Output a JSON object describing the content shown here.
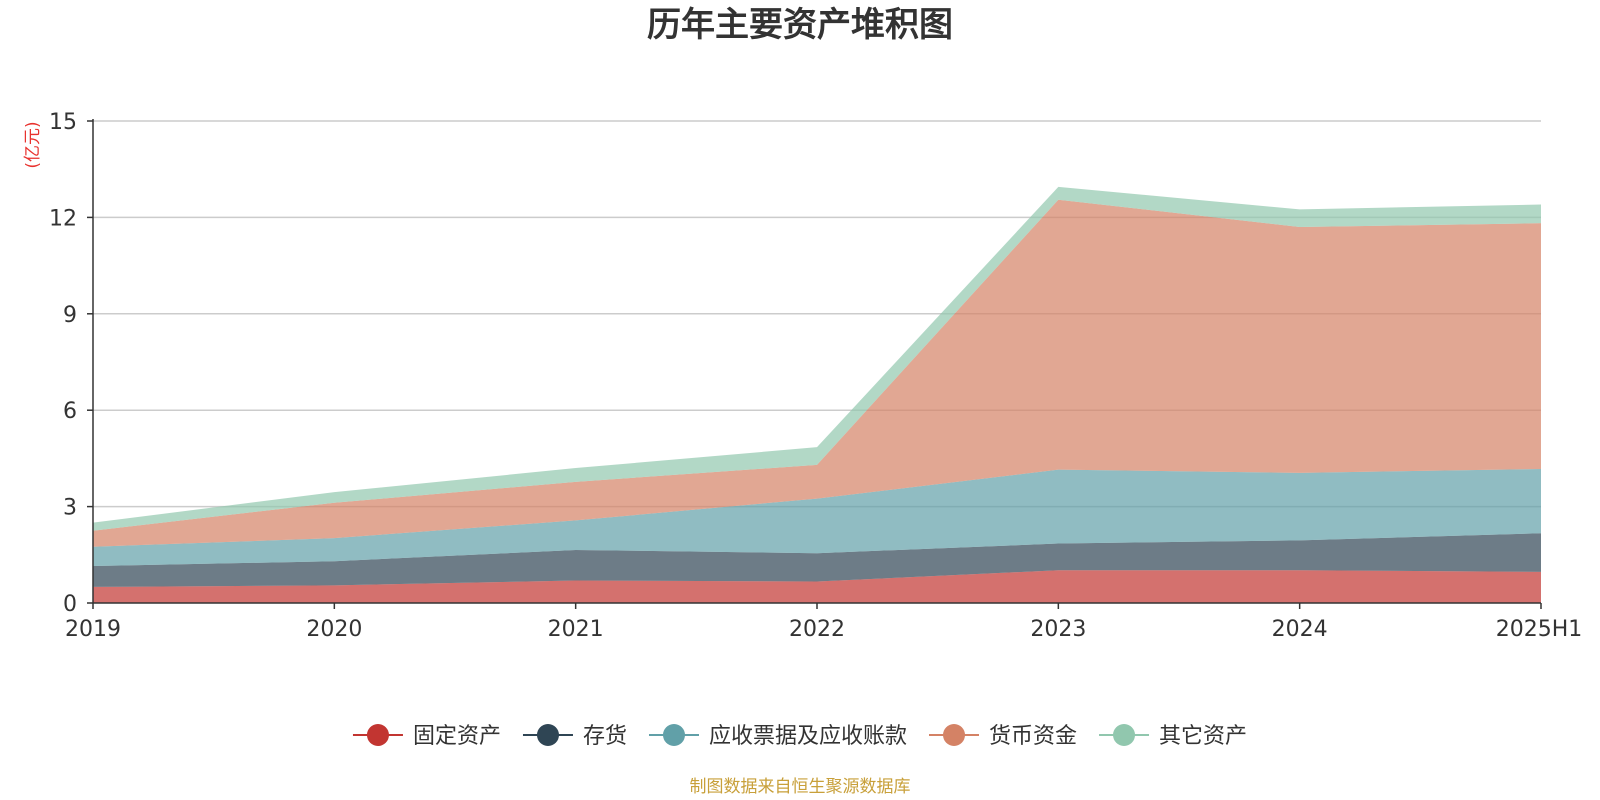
{
  "chart_data": {
    "type": "area",
    "stacked": true,
    "title": "历年主要资产堆积图",
    "y_unit": "(亿元)",
    "categories": [
      "2019",
      "2020",
      "2021",
      "2022",
      "2023",
      "2024",
      "2025H1"
    ],
    "ylim": [
      0,
      15
    ],
    "yticks": [
      0,
      3,
      6,
      9,
      12,
      15
    ],
    "grid": true,
    "legend_position": "bottom",
    "series": [
      {
        "name": "固定资产",
        "color": "#c23531",
        "values": [
          0.5,
          0.55,
          0.7,
          0.67,
          1.02,
          1.02,
          0.97
        ]
      },
      {
        "name": "存货",
        "color": "#2f4554",
        "values": [
          0.65,
          0.75,
          0.95,
          0.88,
          0.83,
          0.93,
          1.2
        ]
      },
      {
        "name": "应收票据及应收账款",
        "color": "#61a0a8",
        "values": [
          0.6,
          0.72,
          0.92,
          1.7,
          2.3,
          2.1,
          2.0
        ]
      },
      {
        "name": "货币资金",
        "color": "#d48265",
        "values": [
          0.5,
          1.1,
          1.2,
          1.05,
          8.4,
          7.65,
          7.65
        ]
      },
      {
        "name": "其它资产",
        "color": "#91c7ae",
        "values": [
          0.25,
          0.33,
          0.43,
          0.55,
          0.4,
          0.55,
          0.58
        ]
      }
    ],
    "source": "制图数据来自恒生聚源数据库"
  }
}
